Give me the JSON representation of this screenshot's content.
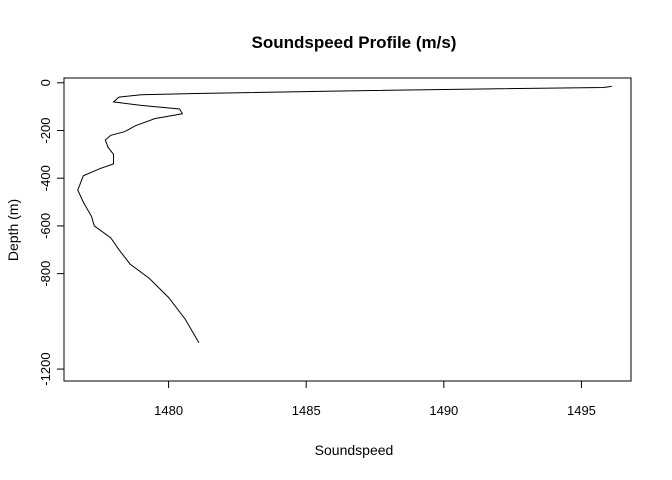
{
  "chart_data": {
    "type": "line",
    "title": "Soundspeed Profile (m/s)",
    "xlabel": "Soundspeed",
    "ylabel": "Depth (m)",
    "xlim": [
      1476.2,
      1496.8
    ],
    "ylim": [
      -1250,
      20
    ],
    "x_ticks": [
      1480,
      1485,
      1490,
      1495
    ],
    "x_tick_labels": [
      "1480",
      "1485",
      "1490",
      "1495"
    ],
    "y_ticks": [
      0,
      -200,
      -400,
      -600,
      -800,
      -1200
    ],
    "y_tick_labels": [
      "0",
      "-200",
      "-400",
      "-600",
      "-800",
      "-1200"
    ],
    "grid": false,
    "legend": "none",
    "line_color": "#000000",
    "series": [
      {
        "x": [
          1496.1,
          1495.8,
          1492.0,
          1486.0,
          1481.0,
          1479.0,
          1478.2,
          1478.0,
          1479.0,
          1480.4,
          1480.5,
          1479.5,
          1478.8,
          1478.4,
          1477.9,
          1477.7,
          1477.8,
          1478.0,
          1478.0,
          1477.5,
          1476.9,
          1476.7,
          1476.9,
          1477.2,
          1477.3,
          1477.9,
          1478.2,
          1478.6,
          1479.3,
          1480.0,
          1480.6,
          1481.1
        ],
        "y": [
          -15,
          -20,
          -25,
          -35,
          -45,
          -50,
          -60,
          -80,
          -95,
          -110,
          -130,
          -150,
          -180,
          -205,
          -220,
          -240,
          -270,
          -300,
          -340,
          -360,
          -390,
          -450,
          -500,
          -560,
          -600,
          -650,
          -700,
          -760,
          -820,
          -900,
          -990,
          -1090
        ]
      }
    ]
  }
}
